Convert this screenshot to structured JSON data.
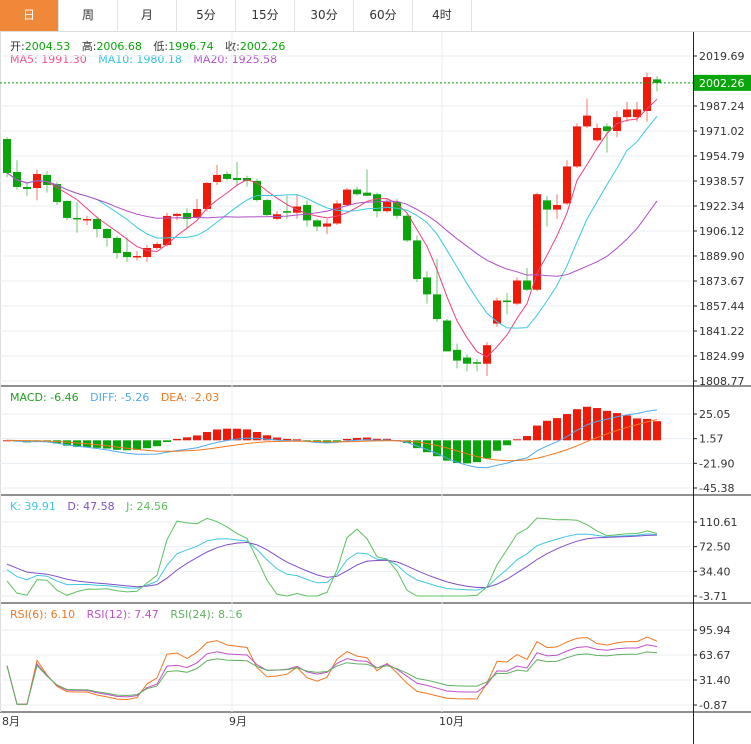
{
  "tabs": [
    "日",
    "周",
    "月",
    "5分",
    "15分",
    "30分",
    "60分",
    "4时"
  ],
  "active_tab": 0,
  "ohlc_legend": {
    "open_label": "开:",
    "open": "2004.53",
    "high_label": "高:",
    "high": "2006.68",
    "low_label": "低:",
    "low": "1996.74",
    "close_label": "收:",
    "close": "2002.26"
  },
  "ma_legend": {
    "ma5": "MA5: 1991.30",
    "ma10": "MA10: 1980.18",
    "ma20": "MA20: 1925.58"
  },
  "macd_legend": {
    "macd": "MACD: -6.46",
    "diff": "DIFF: -5.26",
    "dea": "DEA: -2.03"
  },
  "kdj_legend": {
    "k": "K: 39.91",
    "d": "D: 47.58",
    "j": "J: 24.56"
  },
  "rsi_legend": {
    "rsi6": "RSI(6): 6.10",
    "rsi12": "RSI(12): 7.47",
    "rsi24": "RSI(24): 8.16"
  },
  "colors": {
    "up": "#f01a0a",
    "down": "#0aa50a",
    "ma5": "#f0407a",
    "ma10": "#3cc8e0",
    "ma20": "#b050c8",
    "diff": "#50aaf0",
    "dea": "#f07820",
    "accent": "#f0883a",
    "k": "#40c8e0",
    "d": "#8050c8",
    "j": "#60c060",
    "rsi6": "#f07820",
    "rsi12": "#c050c8",
    "rsi24": "#60b060"
  },
  "chart_data": {
    "type": "candlestick",
    "price_axis_labels": [
      "2019.69",
      "1987.24",
      "1971.02",
      "1954.79",
      "1938.57",
      "1922.34",
      "1906.12",
      "1889.90",
      "1873.67",
      "1857.44",
      "1841.22",
      "1824.99",
      "1808.77"
    ],
    "price_range": [
      1808.77,
      2019.69
    ],
    "current_price": "2002.26",
    "macd_axis_labels": [
      "25.05",
      "1.57",
      "-21.90",
      "-45.38"
    ],
    "macd_range": [
      -45.38,
      25.05
    ],
    "kdj_axis_labels": [
      "110.61",
      "72.50",
      "34.40",
      "-3.71"
    ],
    "kdj_range": [
      -3.71,
      110.61
    ],
    "rsi_axis_labels": [
      "95.94",
      "63.67",
      "31.40",
      "-0.87"
    ],
    "rsi_range": [
      -0.87,
      95.94
    ],
    "date_labels": [
      {
        "label": "8月",
        "index": 0
      },
      {
        "label": "9月",
        "index": 23
      },
      {
        "label": "10月",
        "index": 44
      }
    ],
    "candles": [
      [
        1965.8,
        1967,
        1941,
        1943.8
      ],
      [
        1944.4,
        1952,
        1933,
        1934.7
      ],
      [
        1934.7,
        1937,
        1929,
        1933.4
      ],
      [
        1934.0,
        1946,
        1926,
        1943.1
      ],
      [
        1942.5,
        1945,
        1931,
        1936.0
      ],
      [
        1936.6,
        1938,
        1923,
        1924.9
      ],
      [
        1925.6,
        1926,
        1913,
        1914.6
      ],
      [
        1914.6,
        1925,
        1905,
        1913.9
      ],
      [
        1913.3,
        1916,
        1910,
        1913.9
      ],
      [
        1913.9,
        1915,
        1902,
        1907.4
      ],
      [
        1907.4,
        1908,
        1896,
        1901.6
      ],
      [
        1901.6,
        1903,
        1888,
        1891.8
      ],
      [
        1892.5,
        1902,
        1886,
        1889.2
      ],
      [
        1889.2,
        1893,
        1887,
        1889.9
      ],
      [
        1889.2,
        1897,
        1886,
        1895.1
      ],
      [
        1895.1,
        1899,
        1894,
        1897.7
      ],
      [
        1897.0,
        1918,
        1896,
        1915.9
      ],
      [
        1915.9,
        1918,
        1913,
        1917.2
      ],
      [
        1917.8,
        1921,
        1908,
        1913.9
      ],
      [
        1915.2,
        1927,
        1914,
        1920.4
      ],
      [
        1920.4,
        1938,
        1919,
        1937.3
      ],
      [
        1937.9,
        1949,
        1936,
        1942.5
      ],
      [
        1943.1,
        1945,
        1939,
        1939.9
      ],
      [
        1940.5,
        1951,
        1935,
        1939.2
      ],
      [
        1940.5,
        1942,
        1935,
        1938.6
      ],
      [
        1938.6,
        1940,
        1925,
        1926.2
      ],
      [
        1926.2,
        1927,
        1916,
        1916.5
      ],
      [
        1914,
        1919,
        1913,
        1917
      ],
      [
        1919,
        1929,
        1914,
        1918
      ],
      [
        1918,
        1930,
        1914,
        1922
      ],
      [
        1923,
        1926,
        1909,
        1913
      ],
      [
        1913,
        1914,
        1906,
        1909
      ],
      [
        1909,
        1914,
        1904,
        1911
      ],
      [
        1911,
        1926,
        1910,
        1924
      ],
      [
        1923,
        1934,
        1922,
        1933
      ],
      [
        1933,
        1935,
        1929,
        1930
      ],
      [
        1931,
        1946,
        1929,
        1929
      ],
      [
        1930,
        1931,
        1915,
        1919
      ],
      [
        1919,
        1927,
        1918,
        1925
      ],
      [
        1925,
        1927,
        1914,
        1916
      ],
      [
        1916,
        1917,
        1899,
        1900
      ],
      [
        1900,
        1903,
        1873,
        1875
      ],
      [
        1876,
        1880,
        1859,
        1865
      ],
      [
        1865,
        1888,
        1847,
        1849
      ],
      [
        1848,
        1849,
        1828,
        1828
      ],
      [
        1829,
        1833,
        1817,
        1822
      ],
      [
        1824,
        1826,
        1815,
        1820
      ],
      [
        1821,
        1823,
        1815,
        1820
      ],
      [
        1820,
        1834,
        1812,
        1832
      ],
      [
        1846,
        1863,
        1844,
        1861
      ],
      [
        1861,
        1866,
        1852,
        1860
      ],
      [
        1859,
        1876,
        1858,
        1874
      ],
      [
        1874,
        1882,
        1867,
        1868
      ],
      [
        1868,
        1931,
        1867,
        1930
      ],
      [
        1926,
        1929,
        1909,
        1920
      ],
      [
        1920,
        1930,
        1914,
        1923
      ],
      [
        1924,
        1952,
        1923,
        1948
      ],
      [
        1948,
        1976,
        1947,
        1974
      ],
      [
        1974,
        1992,
        1973,
        1981
      ],
      [
        1965,
        1976,
        1964,
        1973
      ],
      [
        1974,
        1976,
        1957,
        1971
      ],
      [
        1971,
        1984,
        1967,
        1980
      ],
      [
        1980,
        1990,
        1977,
        1985
      ],
      [
        1980,
        1990,
        1977,
        1985
      ],
      [
        1984,
        2009,
        1977,
        2006
      ],
      [
        2004.53,
        2006.68,
        1996.74,
        2002.26
      ]
    ]
  }
}
